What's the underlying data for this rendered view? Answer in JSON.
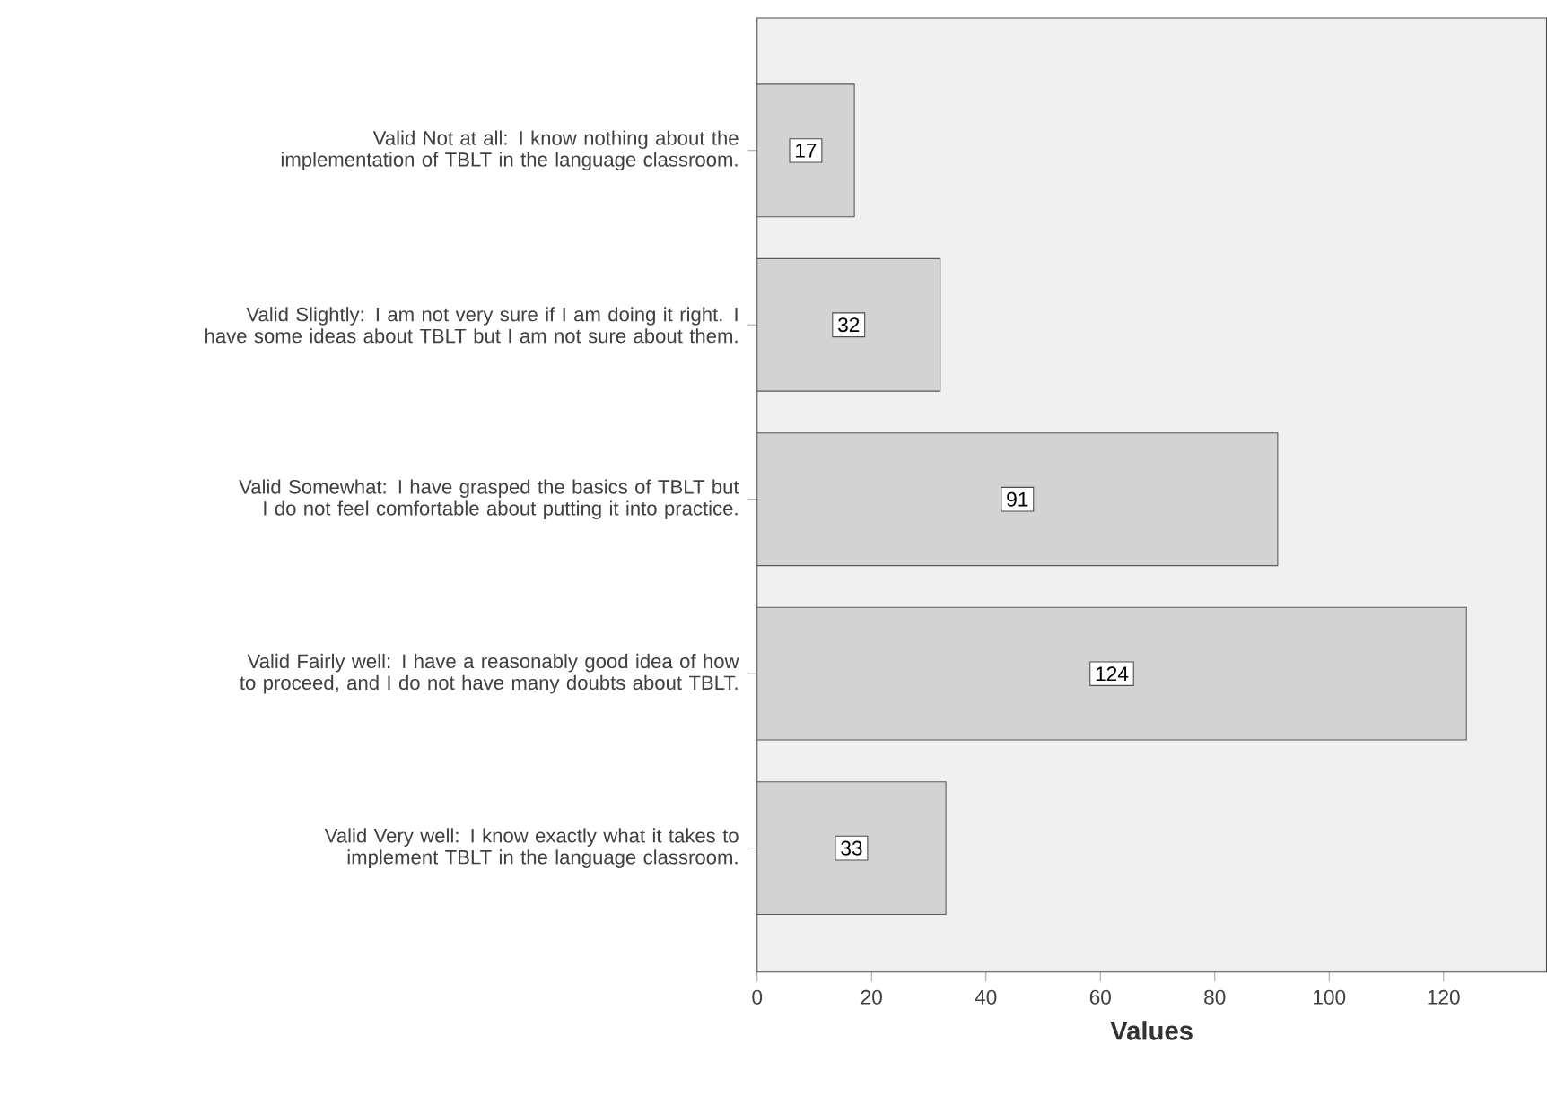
{
  "chart_data": {
    "type": "bar",
    "orientation": "horizontal",
    "categories": [
      "Valid Not at all: I know nothing about the implementation of TBLT in the language classroom.",
      "Valid Slightly: I am not very sure if I am doing it right. I have some ideas about TBLT but I am not sure about them.",
      "Valid Somewhat: I have grasped the basics of TBLT but I do not feel comfortable about putting it into practice.",
      "Valid Fairly well: I have a reasonably good idea of how to proceed, and I do not have many doubts about TBLT.",
      "Valid Very well: I know exactly what it takes to implement TBLT in the language classroom."
    ],
    "values": [
      17,
      32,
      91,
      124,
      33
    ],
    "value_labels": [
      "17",
      "32",
      "91",
      "124",
      "33"
    ],
    "color": "#d3d3d3",
    "xlabel": "Values",
    "xlim": [
      0,
      138
    ],
    "xticks": [
      0,
      20,
      40,
      60,
      80,
      100,
      120
    ]
  }
}
